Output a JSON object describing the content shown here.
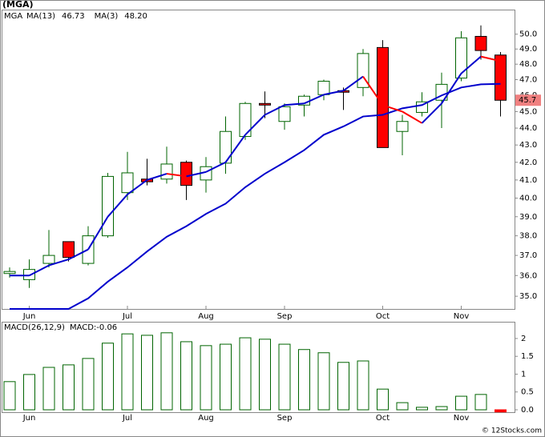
{
  "chart_data": [
    {
      "type": "candlestick",
      "title": "(MGA)",
      "symbol": "MGA",
      "categories": [
        null,
        "Jun",
        null,
        null,
        null,
        null,
        "Jul",
        null,
        null,
        null,
        "Aug",
        null,
        null,
        null,
        "Sep",
        null,
        null,
        null,
        null,
        "Oct",
        null,
        null,
        null,
        "Nov",
        null,
        null
      ],
      "open": [
        36.1,
        35.8,
        36.6,
        37.7,
        36.6,
        38.0,
        40.3,
        41.05,
        41.05,
        42.0,
        41.0,
        41.95,
        43.5,
        45.5,
        44.4,
        45.4,
        46.05,
        46.3,
        46.5,
        49.1,
        43.8,
        44.95,
        45.7,
        47.1,
        49.85,
        48.6
      ],
      "high": [
        36.4,
        36.8,
        38.3,
        37.7,
        38.5,
        41.4,
        42.6,
        42.2,
        42.9,
        42.1,
        42.3,
        44.7,
        45.6,
        46.25,
        45.5,
        46.05,
        47.0,
        46.5,
        49.0,
        49.6,
        44.8,
        46.2,
        47.45,
        50.2,
        50.6,
        48.8
      ],
      "low": [
        35.9,
        35.4,
        36.4,
        36.7,
        36.5,
        37.9,
        39.9,
        40.7,
        40.8,
        39.9,
        40.3,
        41.35,
        43.3,
        44.6,
        43.9,
        44.7,
        45.7,
        45.1,
        45.95,
        42.85,
        42.4,
        44.7,
        44.0,
        46.9,
        48.3,
        44.7
      ],
      "close": [
        36.2,
        36.3,
        37.0,
        36.9,
        38.0,
        41.2,
        41.4,
        40.9,
        41.9,
        40.7,
        41.75,
        43.8,
        45.5,
        45.4,
        45.3,
        45.95,
        46.9,
        46.2,
        48.7,
        42.85,
        44.4,
        45.6,
        46.7,
        49.75,
        48.9,
        45.7
      ],
      "up_color": "#ffffff",
      "up_edge": "#006400",
      "down_color": "#ff0000",
      "symbol_color": "#008000",
      "last_price": 45.7,
      "last_price_color": "#f08080",
      "log_scale": true,
      "ylim": [
        34.4,
        51.7
      ],
      "yticks": [
        {
          "value": 35,
          "label": "35.0"
        },
        {
          "value": 36,
          "label": "36.0"
        },
        {
          "value": 37,
          "label": "37.0"
        },
        {
          "value": 38,
          "label": "38.0"
        },
        {
          "value": 39,
          "label": "39.0"
        },
        {
          "value": 40,
          "label": "40.0"
        },
        {
          "value": 41,
          "label": "41.0"
        },
        {
          "value": 42,
          "label": "42.0"
        },
        {
          "value": 43,
          "label": "43.0"
        },
        {
          "value": 44,
          "label": "44.0"
        },
        {
          "value": 45,
          "label": "45.0"
        },
        {
          "value": 46,
          "label": "46.0"
        },
        {
          "value": 47,
          "label": "47.0"
        },
        {
          "value": 48,
          "label": "48.0"
        },
        {
          "value": 49,
          "label": "49.0"
        },
        {
          "value": 50,
          "label": "50.0"
        }
      ],
      "series": [
        {
          "name": "MA(13)",
          "last": 46.73,
          "color": "#0000cc",
          "values": [
            34.4,
            34.4,
            34.4,
            34.4,
            34.9,
            35.7,
            36.4,
            37.2,
            37.95,
            38.5,
            39.15,
            39.7,
            40.6,
            41.35,
            42.0,
            42.7,
            43.6,
            44.1,
            44.7,
            44.8,
            45.2,
            45.4,
            46.0,
            46.5,
            46.7,
            46.73
          ]
        },
        {
          "name": "MA(3)",
          "last": {
            "value": 48.2,
            "label": "48.20"
          },
          "color": "#0000cc",
          "down_color": "#ff0000",
          "values": [
            36.0,
            36.0,
            36.5,
            36.8,
            37.3,
            39.0,
            40.2,
            41.0,
            41.35,
            41.2,
            41.45,
            42.0,
            43.6,
            44.8,
            45.4,
            45.5,
            46.05,
            46.3,
            47.2,
            45.4,
            45.0,
            44.3,
            45.5,
            47.4,
            48.5,
            48.2
          ]
        }
      ]
    },
    {
      "type": "bar",
      "title": "MACD(26,12,9)",
      "legend_label": "MACD:-0.06",
      "legend_color": "#0000cc",
      "categories": [
        null,
        "Jun",
        null,
        null,
        null,
        null,
        "Jul",
        null,
        null,
        null,
        "Aug",
        null,
        null,
        null,
        "Sep",
        null,
        null,
        null,
        null,
        "Oct",
        null,
        null,
        null,
        "Nov",
        null,
        null
      ],
      "values": [
        0.79,
        0.99,
        1.19,
        1.26,
        1.44,
        1.87,
        2.13,
        2.09,
        2.16,
        1.91,
        1.8,
        1.84,
        2.02,
        1.98,
        1.84,
        1.69,
        1.6,
        1.33,
        1.37,
        0.58,
        0.2,
        0.07,
        0.09,
        0.38,
        0.43,
        -0.06
      ],
      "color": "#006400",
      "negative_color": "#ff0000",
      "ylim": [
        -0.09,
        2.47
      ],
      "yticks": [
        {
          "value": 0,
          "label": "0.0"
        },
        0.5,
        1.0,
        1.5,
        2.0
      ]
    }
  ],
  "footer": "© 12Stocks.com"
}
